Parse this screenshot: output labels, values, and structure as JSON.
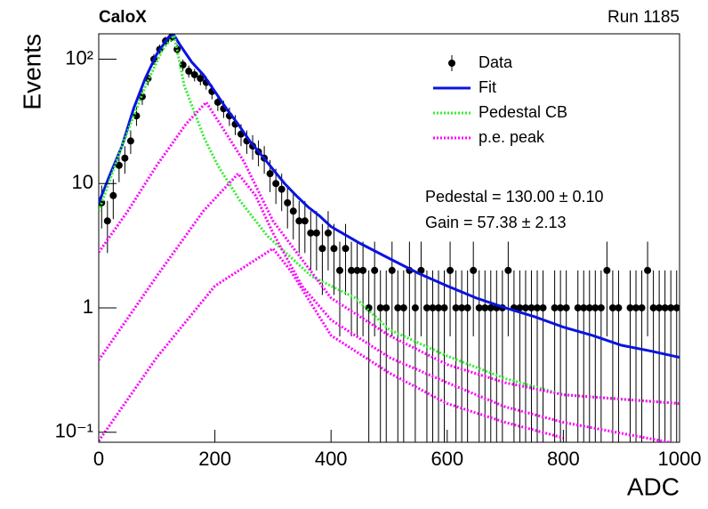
{
  "chart_data": {
    "type": "scatter",
    "title": "CaloX",
    "subtitle": "Run 1185",
    "x_label": "ADC",
    "y_label": "Events",
    "annotations": [
      "Pedestal = 130.00 ± 0.10",
      "Gain = 57.38 ± 2.13"
    ],
    "xlim": [
      0,
      1000
    ],
    "xticks": [
      0,
      200,
      400,
      600,
      800,
      1000
    ],
    "ylim": [
      0.083,
      160
    ],
    "y_log": true,
    "yticks": [
      {
        "value": 0.1,
        "label": "10⁻¹"
      },
      1,
      10,
      {
        "value": 100,
        "label": "10²"
      }
    ],
    "legend": "top-right",
    "series": [
      {
        "name": "Data",
        "color": "#000000",
        "style": "points",
        "x": [
          5,
          15,
          25,
          35,
          45,
          55,
          65,
          75,
          85,
          95,
          105,
          115,
          125,
          135,
          145,
          155,
          165,
          175,
          185,
          195,
          205,
          215,
          225,
          235,
          245,
          255,
          265,
          275,
          285,
          295,
          305,
          315,
          325,
          335,
          345,
          355,
          365,
          375,
          385,
          395,
          405,
          415,
          425,
          435,
          445,
          455,
          465,
          475,
          485,
          495,
          505,
          515,
          525,
          535,
          545,
          555,
          565,
          575,
          585,
          595,
          605,
          615,
          625,
          635,
          645,
          655,
          665,
          675,
          685,
          695,
          705,
          715,
          725,
          735,
          745,
          755,
          765,
          775,
          785,
          795,
          805,
          815,
          825,
          835,
          845,
          855,
          865,
          875,
          885,
          895,
          905,
          915,
          925,
          935,
          945,
          955,
          965,
          975,
          985,
          995
        ],
        "values": [
          7,
          5,
          8,
          14,
          16,
          22,
          35,
          50,
          70,
          100,
          120,
          140,
          150,
          120,
          90,
          80,
          75,
          70,
          65,
          55,
          45,
          40,
          35,
          30,
          25,
          22,
          20,
          18,
          16,
          12,
          10,
          9,
          7,
          6,
          5,
          5,
          4,
          4,
          3,
          4,
          3,
          2,
          3,
          2,
          2,
          2,
          1,
          2,
          1,
          1,
          2,
          1,
          1,
          2,
          1,
          2,
          1,
          1,
          1,
          1,
          2,
          1,
          1,
          1,
          2,
          1,
          1,
          1,
          1,
          1,
          2,
          1,
          1,
          1,
          1,
          1,
          1,
          null,
          1,
          1,
          1,
          null,
          1,
          1,
          1,
          1,
          1,
          2,
          1,
          1,
          null,
          1,
          1,
          1,
          2,
          1,
          1,
          1,
          1,
          1
        ],
        "errors": [
          2.65,
          2.24,
          2.83,
          3.74,
          4,
          4.69,
          5.92,
          7.07,
          8.37,
          10,
          10.95,
          11.83,
          12.25,
          10.95,
          9.49,
          8.94,
          8.66,
          8.37,
          8.06,
          7.42,
          6.71,
          6.32,
          5.92,
          5.48,
          5,
          4.69,
          4.47,
          4.24,
          4,
          3.46,
          3.16,
          3,
          2.65,
          2.45,
          2.24,
          2.24,
          2,
          2,
          1.73,
          2,
          1.73,
          1.41,
          1.73,
          1.41,
          1.41,
          1.41,
          1,
          1.41,
          1,
          1,
          1.41,
          1,
          1,
          1.41,
          1,
          1.41,
          1,
          1,
          1,
          1,
          1.41,
          1,
          1,
          1,
          1.41,
          1,
          1,
          1,
          1,
          1,
          1.41,
          1,
          1,
          1,
          1,
          1,
          1,
          null,
          1,
          1,
          1,
          null,
          1,
          1,
          1,
          1,
          1,
          1.41,
          1,
          1,
          null,
          1,
          1,
          1,
          1.41,
          1,
          1,
          1,
          1,
          1
        ]
      },
      {
        "name": "Fit",
        "color": "#0a14e0",
        "style": "solid",
        "x": [
          0,
          20,
          40,
          60,
          80,
          100,
          120,
          130,
          140,
          160,
          180,
          200,
          220,
          240,
          260,
          280,
          300,
          320,
          340,
          360,
          380,
          400,
          450,
          500,
          550,
          600,
          650,
          700,
          750,
          800,
          850,
          900,
          950,
          1000
        ],
        "values": [
          7,
          12,
          20,
          40,
          70,
          110,
          150,
          155,
          130,
          95,
          75,
          55,
          40,
          30,
          22,
          17,
          13,
          10,
          8,
          6.5,
          5.5,
          4.5,
          3.3,
          2.5,
          1.9,
          1.5,
          1.2,
          1,
          0.85,
          0.7,
          0.6,
          0.5,
          0.45,
          0.4
        ]
      },
      {
        "name": "Pedestal CB",
        "color": "#33ee33",
        "style": "dotted",
        "x": [
          0,
          40,
          80,
          110,
          130,
          147,
          182,
          205,
          243,
          290,
          366,
          442,
          500,
          600,
          700,
          800,
          1000
        ],
        "values": [
          6,
          20,
          60,
          120,
          155,
          62,
          23,
          14,
          7.3,
          3.8,
          1.8,
          1.2,
          0.67,
          0.41,
          0.27,
          0.2,
          0.17
        ]
      },
      {
        "name": "p.e. peak",
        "color": "#ff00ff",
        "style": "dotted",
        "x": [
          0,
          50,
          100,
          150,
          185,
          220,
          250,
          300,
          400,
          500,
          600,
          700,
          800,
          1000
        ],
        "values": [
          2.8,
          6,
          14,
          30,
          45,
          25,
          15,
          5,
          1.2,
          0.6,
          0.35,
          0.25,
          0.2,
          0.17
        ]
      },
      {
        "color": "#ff00ff",
        "style": "dotted",
        "x": [
          0,
          100,
          180,
          240,
          270,
          300,
          350,
          400,
          500,
          600,
          700,
          800,
          1000
        ],
        "values": [
          0.38,
          1.8,
          6,
          12,
          8,
          4,
          1.5,
          0.8,
          0.4,
          0.25,
          0.16,
          0.12,
          0.08
        ]
      },
      {
        "color": "#ff00ff",
        "style": "dotted",
        "x": [
          0,
          100,
          200,
          300,
          330,
          400,
          500,
          600,
          700,
          800
        ],
        "values": [
          0.085,
          0.4,
          1.5,
          3,
          2,
          0.6,
          0.3,
          0.17,
          0.12,
          0.09
        ]
      }
    ]
  }
}
